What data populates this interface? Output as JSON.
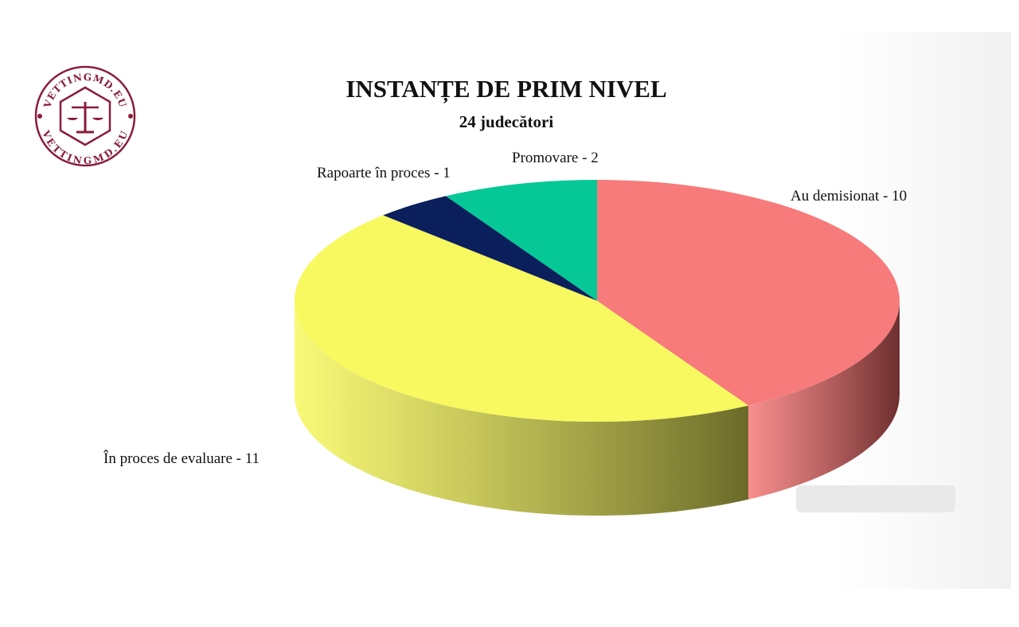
{
  "logo": {
    "text": "VETTINGMD.EU",
    "color": "#8a1c3a"
  },
  "chart_data": {
    "type": "pie",
    "style": "3d",
    "title": "INSTANȚE DE PRIM NIVEL",
    "subtitle": "24 judecători",
    "start_angle": "top, clockwise",
    "slices": [
      {
        "label": "Au demisionat - 10",
        "category": "Au demisionat",
        "value": 10,
        "color": "#f77b7b",
        "side_color": "#6e2f2f"
      },
      {
        "label": "În proces de evaluare - 11",
        "category": "În proces de evaluare",
        "value": 11,
        "color": "#f8f860",
        "side_color": "#6b6b2a"
      },
      {
        "label": "Rapoarte în proces - 1",
        "category": "Rapoarte în proces",
        "value": 1,
        "color": "#0a1f5c",
        "side_color": "#050f2e"
      },
      {
        "label": "Promovare - 2",
        "category": "Promovare",
        "value": 2,
        "color": "#06c896",
        "side_color": "#045a44"
      }
    ]
  }
}
